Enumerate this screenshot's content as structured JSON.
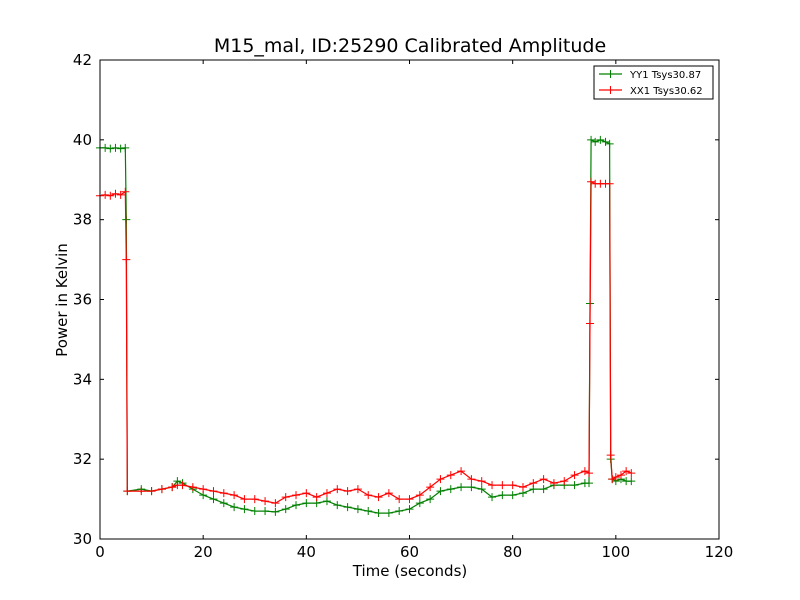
{
  "chart_data": {
    "type": "line",
    "title": "M15_mal, ID:25290 Calibrated Amplitude",
    "xlabel": "Time (seconds)",
    "ylabel": "Power in Kelvin",
    "xlim": [
      0,
      120
    ],
    "ylim": [
      30,
      42
    ],
    "xticks": [
      "0",
      "20",
      "40",
      "60",
      "80",
      "100",
      "120"
    ],
    "yticks": [
      "30",
      "32",
      "34",
      "36",
      "38",
      "40",
      "42"
    ],
    "grid": false,
    "legend_position": "top-right",
    "marker": "+",
    "series": [
      {
        "name": "YY1 Tsys30.87",
        "color": "#008000",
        "x": [
          0,
          1,
          2,
          3,
          4,
          4.9,
          5.1,
          5.3,
          8,
          10,
          12,
          14,
          15,
          16,
          18,
          20,
          22,
          24,
          26,
          28,
          30,
          32,
          34,
          36,
          38,
          40,
          42,
          44,
          46,
          48,
          50,
          52,
          54,
          56,
          58,
          60,
          62,
          64,
          66,
          68,
          70,
          72,
          74,
          76,
          78,
          80,
          82,
          84,
          86,
          88,
          90,
          92,
          94,
          94.8,
          95.0,
          95.2,
          96,
          97,
          98,
          98.8,
          99.0,
          99.3,
          100,
          101,
          102,
          103
        ],
        "y": [
          39.8,
          39.8,
          39.78,
          39.8,
          39.78,
          39.8,
          38.0,
          31.2,
          31.25,
          31.2,
          31.25,
          31.3,
          31.45,
          31.4,
          31.25,
          31.1,
          31.0,
          30.9,
          30.8,
          30.75,
          30.7,
          30.7,
          30.68,
          30.75,
          30.85,
          30.9,
          30.9,
          30.95,
          30.85,
          30.8,
          30.75,
          30.7,
          30.65,
          30.65,
          30.7,
          30.75,
          30.9,
          31.0,
          31.2,
          31.25,
          31.3,
          31.3,
          31.25,
          31.05,
          31.1,
          31.1,
          31.15,
          31.25,
          31.25,
          31.35,
          31.35,
          31.35,
          31.4,
          31.4,
          35.9,
          40.0,
          39.95,
          40.0,
          39.95,
          39.9,
          32.0,
          31.5,
          31.45,
          31.5,
          31.45,
          31.45
        ]
      },
      {
        "name": "XX1 Tsys30.62",
        "color": "#ff0000",
        "x": [
          0,
          1,
          2,
          3,
          4,
          4.9,
          5.1,
          5.3,
          8,
          10,
          12,
          14,
          15,
          16,
          18,
          20,
          22,
          24,
          26,
          28,
          30,
          32,
          34,
          36,
          38,
          40,
          42,
          44,
          46,
          48,
          50,
          52,
          54,
          56,
          58,
          60,
          62,
          64,
          66,
          68,
          70,
          72,
          74,
          76,
          78,
          80,
          82,
          84,
          86,
          88,
          90,
          92,
          94,
          94.8,
          95.0,
          95.2,
          96,
          97,
          98,
          98.8,
          99.0,
          99.3,
          100,
          101,
          102,
          103
        ],
        "y": [
          38.6,
          38.62,
          38.6,
          38.65,
          38.62,
          38.7,
          37.0,
          31.2,
          31.2,
          31.2,
          31.25,
          31.3,
          31.35,
          31.35,
          31.3,
          31.25,
          31.2,
          31.15,
          31.1,
          31.0,
          31.0,
          30.95,
          30.9,
          31.05,
          31.1,
          31.15,
          31.05,
          31.15,
          31.25,
          31.2,
          31.25,
          31.1,
          31.05,
          31.15,
          31.0,
          31.0,
          31.1,
          31.3,
          31.5,
          31.6,
          31.7,
          31.5,
          31.45,
          31.35,
          31.35,
          31.35,
          31.3,
          31.4,
          31.5,
          31.4,
          31.45,
          31.6,
          31.7,
          31.65,
          35.4,
          38.95,
          38.9,
          38.9,
          38.9,
          38.9,
          32.1,
          31.5,
          31.55,
          31.6,
          31.7,
          31.65
        ]
      }
    ]
  }
}
